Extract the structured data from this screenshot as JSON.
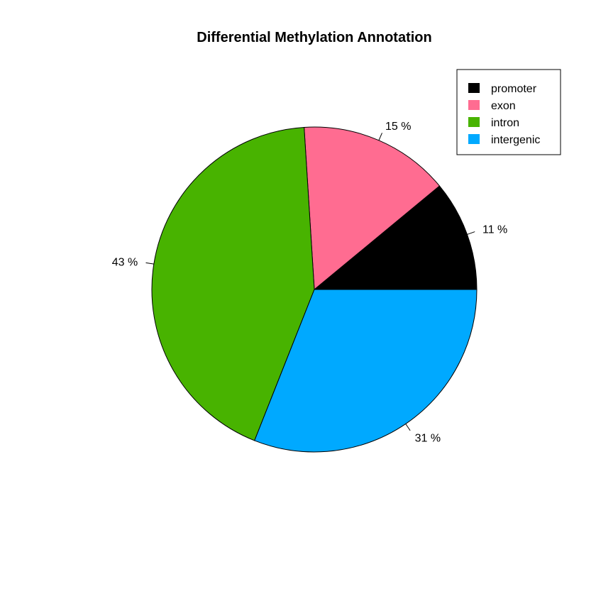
{
  "chart_data": {
    "type": "pie",
    "title": "Differential Methylation Annotation",
    "categories": [
      "promoter",
      "exon",
      "intron",
      "intergenic"
    ],
    "values": [
      11,
      15,
      43,
      31
    ],
    "labels": [
      "11 %",
      "15 %",
      "43 %",
      "31 %"
    ],
    "colors": [
      "#000000",
      "#FF6C91",
      "#48B300",
      "#00A9FF"
    ],
    "start_angle_deg": 0,
    "direction": "counterclockwise",
    "legend": {
      "placement": "top-right",
      "entries": [
        "promoter",
        "exon",
        "intron",
        "intergenic"
      ]
    }
  }
}
